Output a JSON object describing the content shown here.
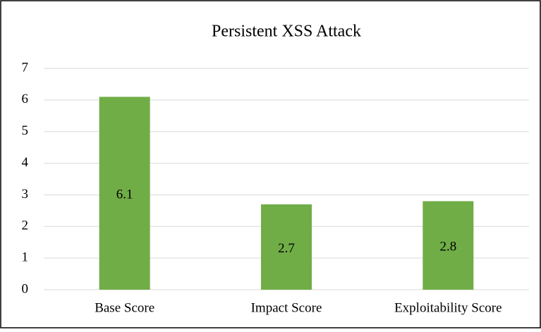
{
  "chart_data": {
    "type": "bar",
    "title": "Persistent XSS Attack",
    "categories": [
      "Base Score",
      "Impact Score",
      "Exploitability Score"
    ],
    "values": [
      6.1,
      2.7,
      2.8
    ],
    "color": "#70ad47",
    "ylim": [
      0,
      7
    ],
    "yticks": [
      0,
      1,
      2,
      3,
      4,
      5,
      6,
      7
    ],
    "grid": true
  }
}
